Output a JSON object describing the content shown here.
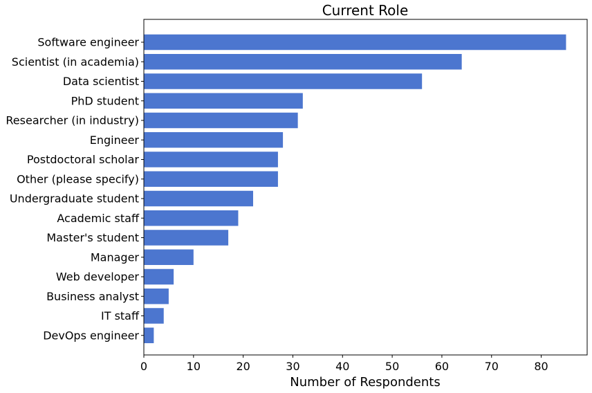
{
  "chart_data": {
    "type": "bar",
    "orientation": "horizontal",
    "title": "Current Role",
    "xlabel": "Number of Respondents",
    "ylabel": "",
    "xlim": [
      0,
      89.25
    ],
    "x_ticks": [
      0,
      10,
      20,
      30,
      40,
      50,
      60,
      70,
      80
    ],
    "grid": false,
    "legend": "none",
    "bar_color": "#4c76cf",
    "categories": [
      "Software engineer",
      "Scientist (in academia)",
      "Data scientist",
      "PhD student",
      "Researcher (in industry)",
      "Engineer",
      "Postdoctoral scholar",
      "Other (please specify)",
      "Undergraduate student",
      "Academic staff",
      "Master's student",
      "Manager",
      "Web developer",
      "Business analyst",
      "IT staff",
      "DevOps engineer"
    ],
    "values": [
      85,
      64,
      56,
      32,
      31,
      28,
      27,
      27,
      22,
      19,
      17,
      10,
      6,
      5,
      4,
      2
    ]
  }
}
